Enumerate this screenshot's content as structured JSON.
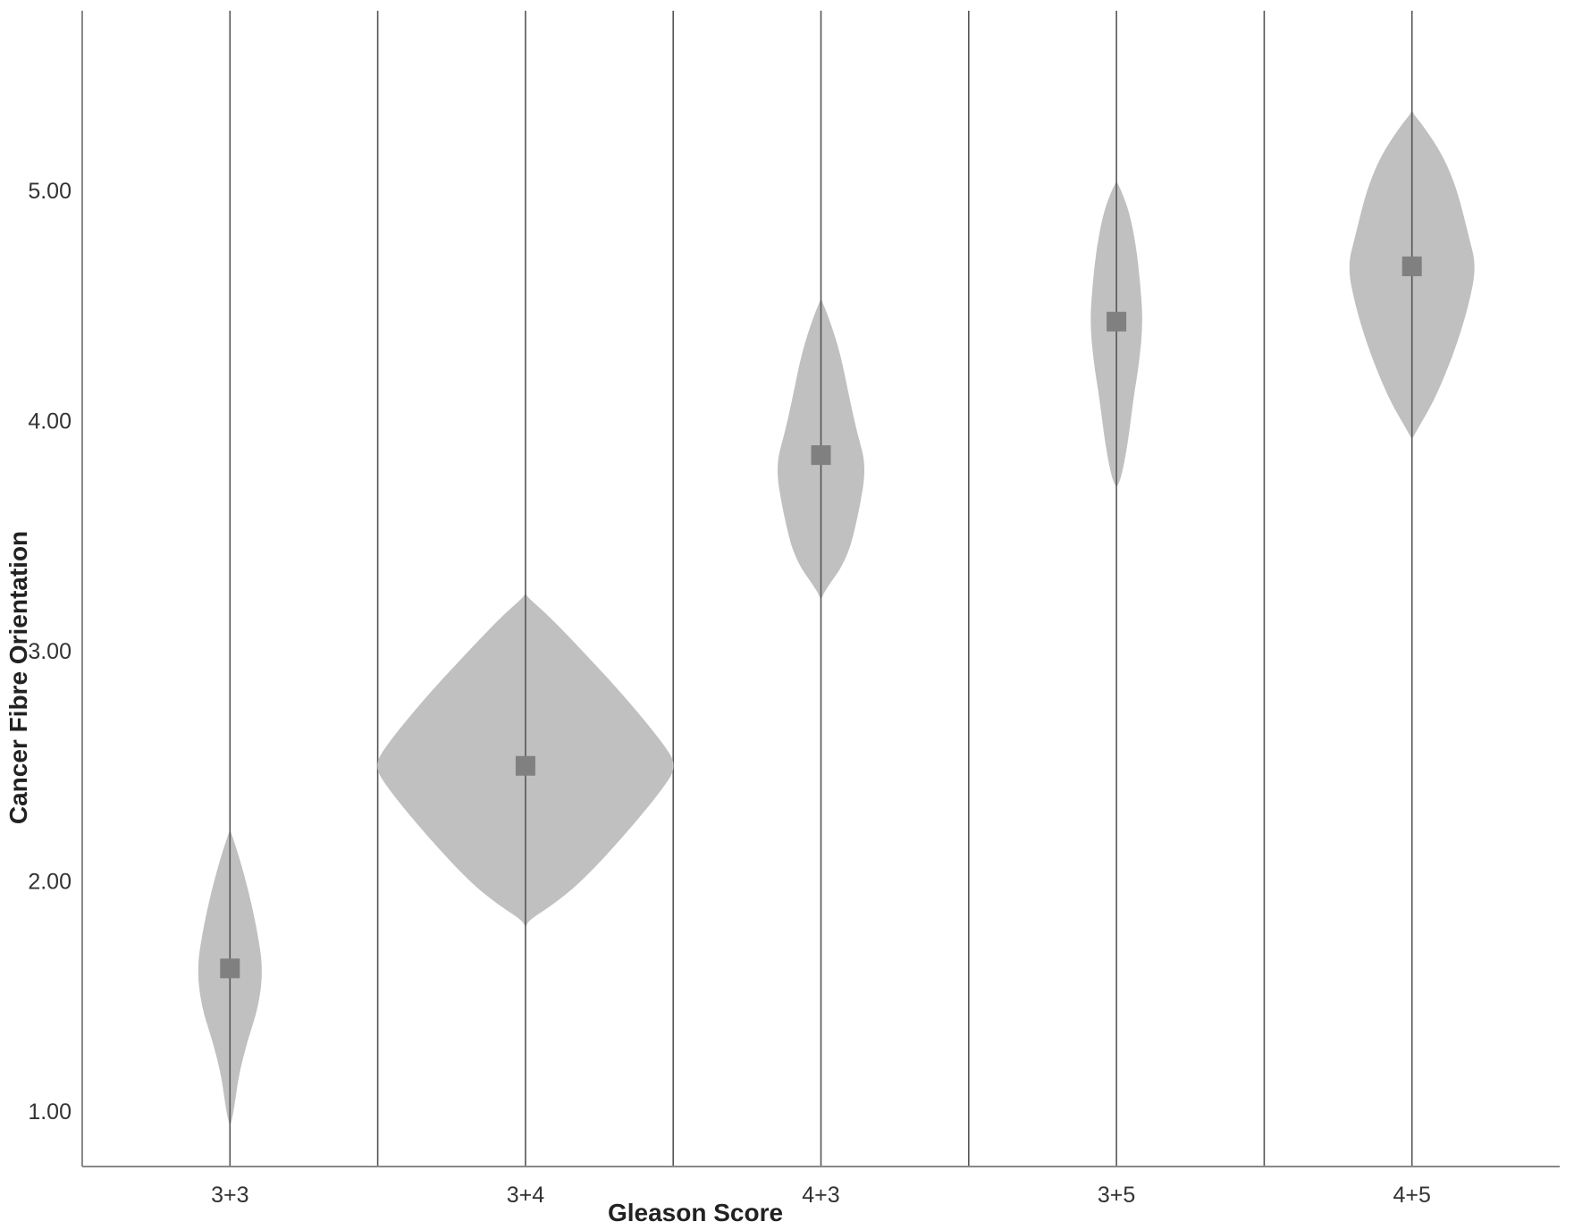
{
  "chart_data": {
    "type": "violin",
    "xlabel": "Gleason Score",
    "ylabel": "Cancer Fibre Orientation",
    "categories": [
      "3+3",
      "3+4",
      "4+3",
      "3+5",
      "4+5"
    ],
    "ylim": [
      0.8,
      5.8
    ],
    "yticks": [
      1.0,
      2.0,
      3.0,
      4.0,
      5.0
    ],
    "ytick_labels": [
      "1.00",
      "2.00",
      "3.00",
      "4.00",
      "5.00"
    ],
    "medians": [
      1.62,
      2.5,
      3.85,
      4.43,
      4.67
    ],
    "grid": "vertical separators",
    "colors": {
      "violin": "#c0c0c0",
      "median": "#808080",
      "line": "#555555",
      "axis": "#888888"
    },
    "violins": [
      {
        "category": "3+3",
        "profile": [
          [
            0.93,
            0
          ],
          [
            1.0,
            0.04
          ],
          [
            1.15,
            0.09
          ],
          [
            1.3,
            0.18
          ],
          [
            1.45,
            0.3
          ],
          [
            1.62,
            0.35
          ],
          [
            1.8,
            0.28
          ],
          [
            1.95,
            0.2
          ],
          [
            2.1,
            0.1
          ],
          [
            2.2,
            0.02
          ],
          [
            2.22,
            0
          ]
        ]
      },
      {
        "category": "3+4",
        "profile": [
          [
            1.8,
            0
          ],
          [
            1.83,
            0.04
          ],
          [
            1.9,
            0.3
          ],
          [
            2.0,
            0.6
          ],
          [
            2.2,
            1.05
          ],
          [
            2.4,
            1.45
          ],
          [
            2.5,
            1.6
          ],
          [
            2.6,
            1.45
          ],
          [
            2.8,
            1.05
          ],
          [
            3.0,
            0.6
          ],
          [
            3.15,
            0.25
          ],
          [
            3.23,
            0.03
          ],
          [
            3.25,
            0
          ]
        ]
      },
      {
        "category": "4+3",
        "profile": [
          [
            3.22,
            0
          ],
          [
            3.26,
            0.04
          ],
          [
            3.4,
            0.28
          ],
          [
            3.6,
            0.4
          ],
          [
            3.8,
            0.48
          ],
          [
            3.95,
            0.38
          ],
          [
            4.1,
            0.3
          ],
          [
            4.3,
            0.2
          ],
          [
            4.45,
            0.08
          ],
          [
            4.53,
            0
          ]
        ]
      },
      {
        "category": "3+5",
        "profile": [
          [
            3.71,
            0
          ],
          [
            3.75,
            0.05
          ],
          [
            3.9,
            0.12
          ],
          [
            4.1,
            0.18
          ],
          [
            4.25,
            0.24
          ],
          [
            4.43,
            0.28
          ],
          [
            4.6,
            0.25
          ],
          [
            4.75,
            0.21
          ],
          [
            4.9,
            0.14
          ],
          [
            5.0,
            0.05
          ],
          [
            5.04,
            0
          ]
        ]
      },
      {
        "category": "4+5",
        "profile": [
          [
            3.92,
            0
          ],
          [
            3.97,
            0.07
          ],
          [
            4.1,
            0.25
          ],
          [
            4.3,
            0.45
          ],
          [
            4.5,
            0.6
          ],
          [
            4.67,
            0.68
          ],
          [
            4.8,
            0.6
          ],
          [
            5.0,
            0.48
          ],
          [
            5.15,
            0.33
          ],
          [
            5.28,
            0.12
          ],
          [
            5.33,
            0.02
          ],
          [
            5.35,
            0
          ]
        ]
      }
    ]
  }
}
